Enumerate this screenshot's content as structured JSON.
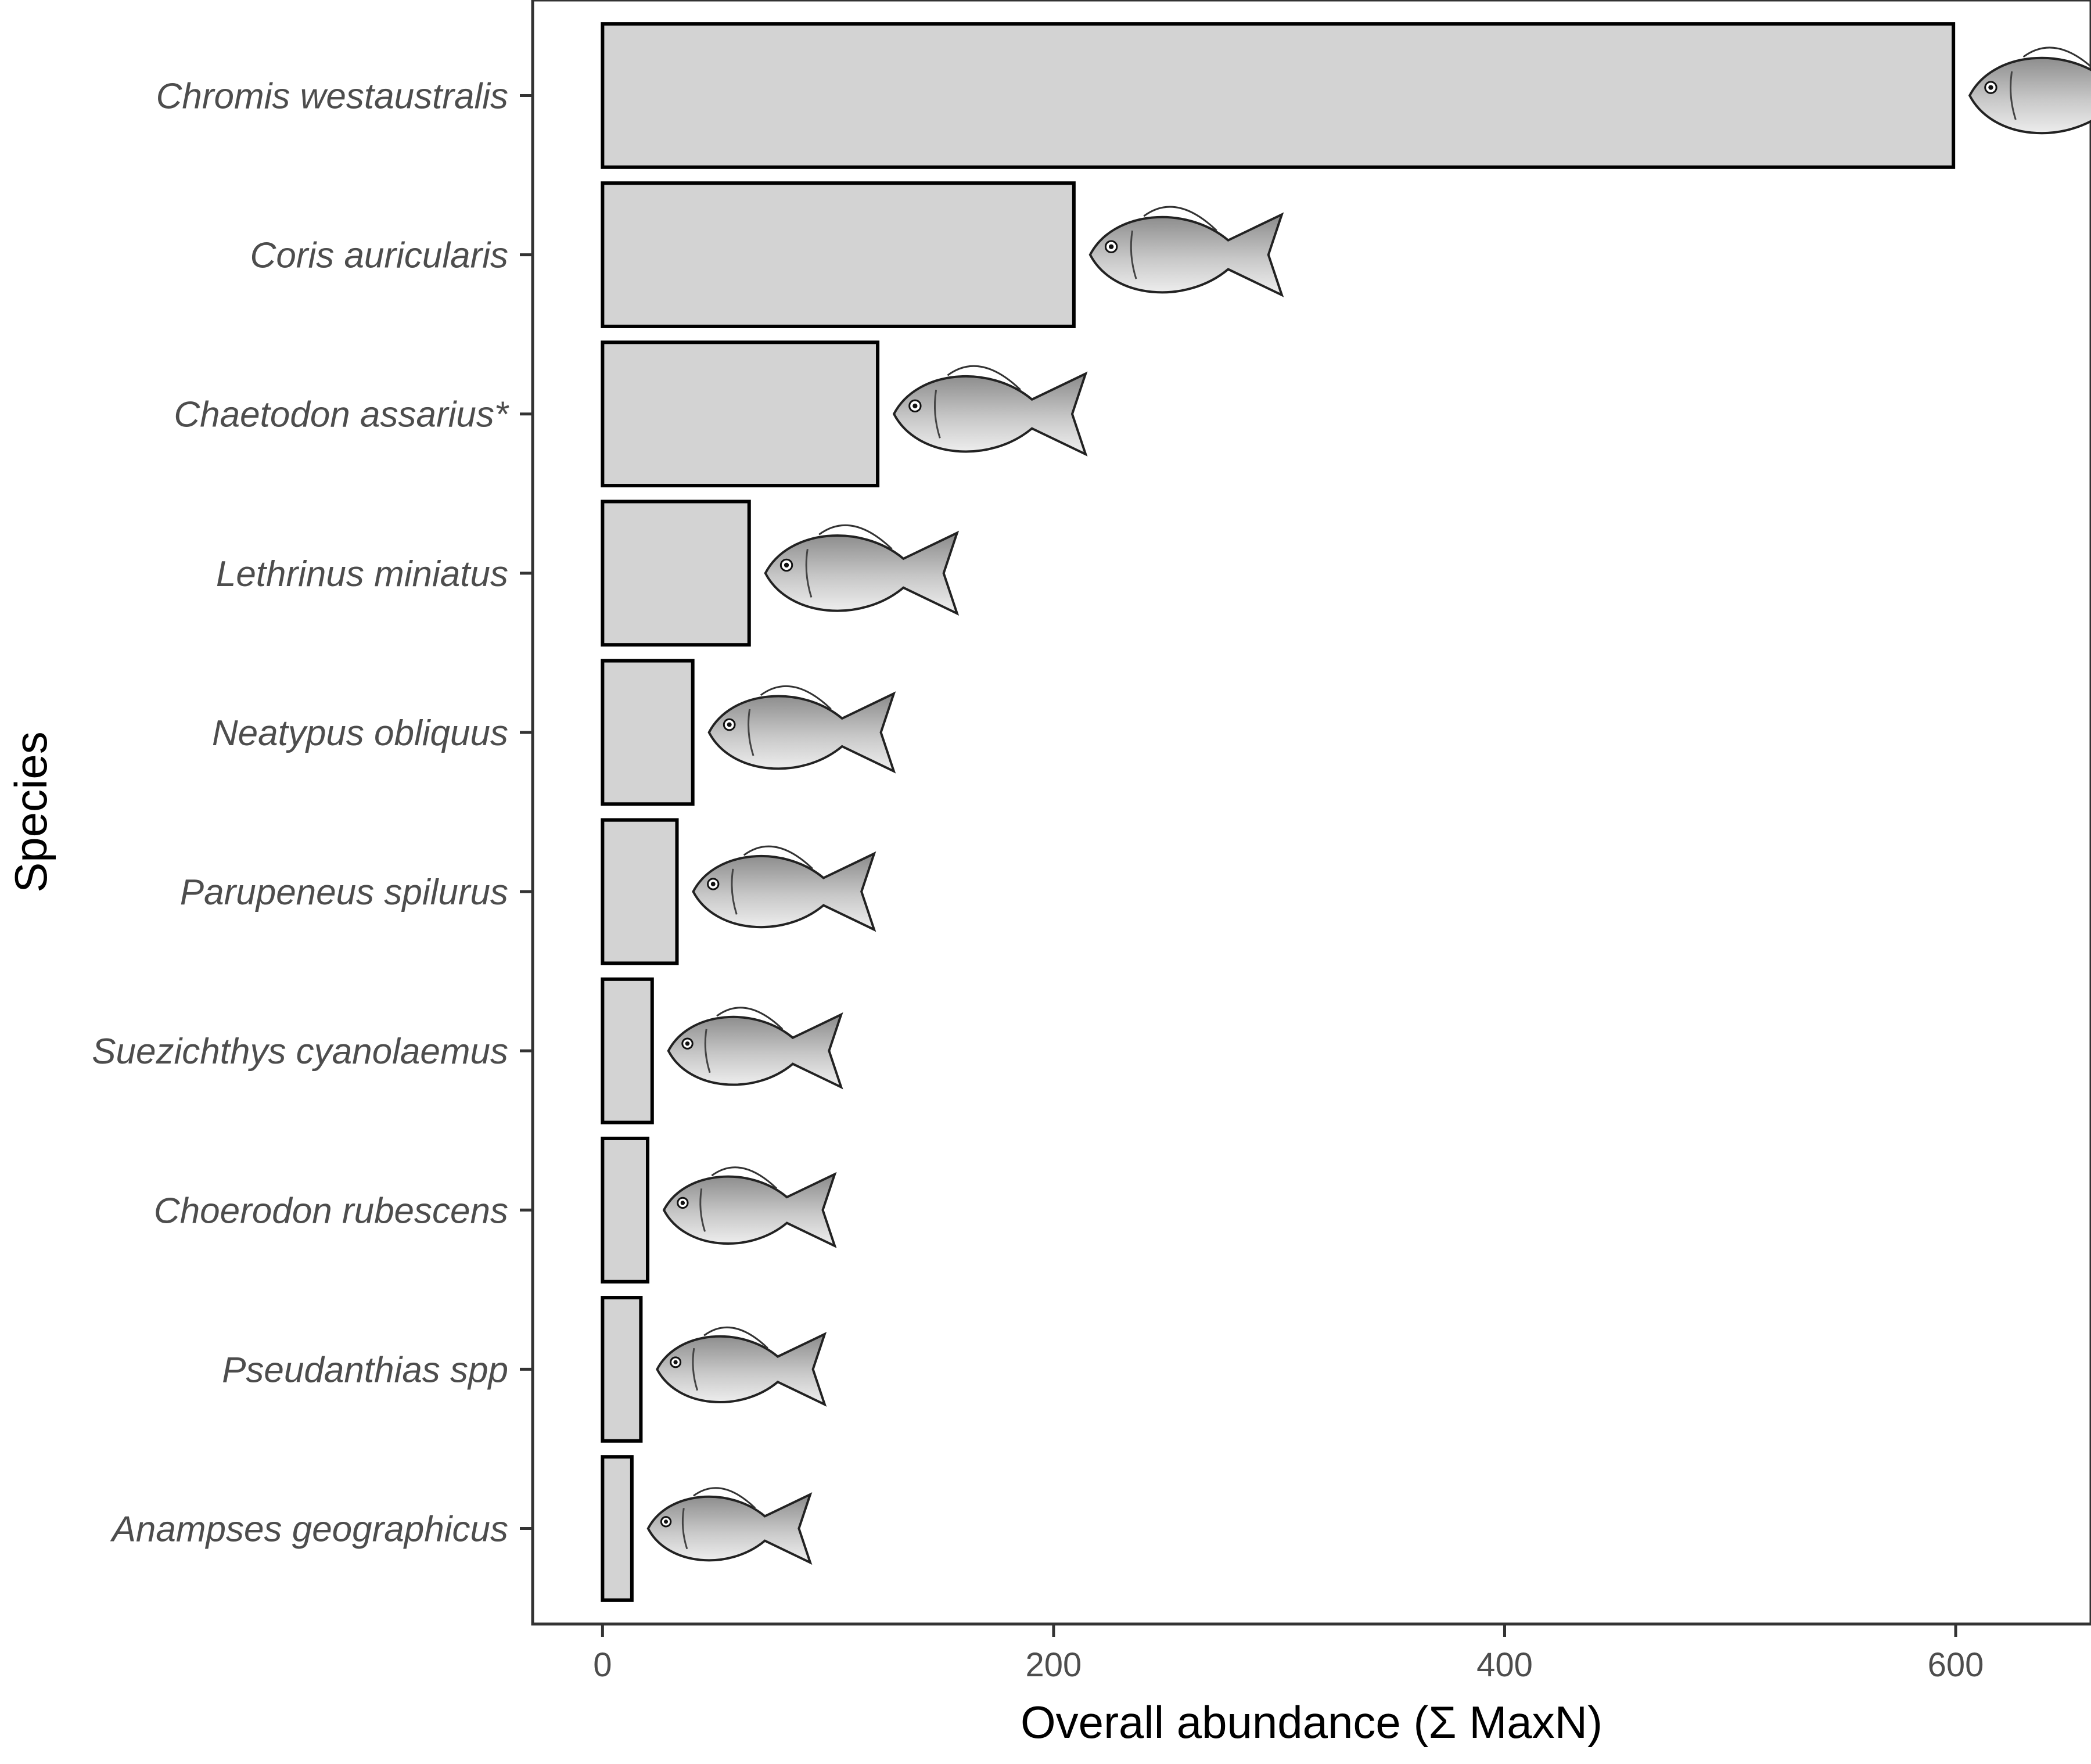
{
  "chart_data": {
    "type": "bar",
    "orientation": "horizontal",
    "categories": [
      "Chromis westaustralis",
      "Coris auricularis",
      "Chaetodon assarius*",
      "Lethrinus miniatus",
      "Neatypus obliquus",
      "Parupeneus spilurus",
      "Suezichthys cyanolaemus",
      "Choerodon rubescens",
      "Pseudanthias spp",
      "Anampses geographicus"
    ],
    "values": [
      599,
      209,
      122,
      65,
      40,
      33,
      22,
      20,
      17,
      13
    ],
    "xlabel": "Overall abundance (Σ MaxN)",
    "ylabel": "Species",
    "xlim": [
      -31,
      660
    ],
    "xticks": [
      0,
      200,
      400,
      600
    ],
    "grid": false,
    "legend": "none",
    "bar_fill": "#d3d3d3",
    "bar_stroke": "#000000",
    "fish_icons": [
      "chromis-damselfish-icon",
      "coris-wrasse-icon",
      "butterflyfish-icon",
      "emperor-fish-icon",
      "boarfish-icon",
      "goatfish-icon",
      "small-wrasse-icon",
      "baldchin-groper-icon",
      "anthias-icon",
      "anampses-wrasse-icon"
    ]
  }
}
